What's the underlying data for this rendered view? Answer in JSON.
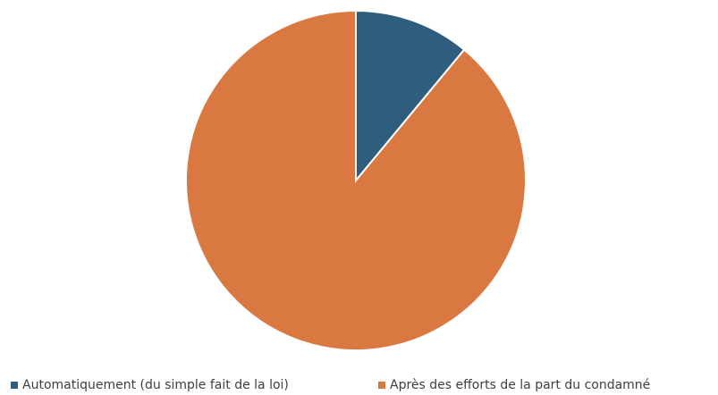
{
  "chart_data": {
    "type": "pie",
    "categories": [
      "Automatiquement (du simple fait de la loi)",
      "Après des efforts de la part du condamné"
    ],
    "values": [
      11,
      89
    ],
    "colors": [
      "#2e5d7d",
      "#d97941"
    ],
    "legend": "bottom"
  }
}
